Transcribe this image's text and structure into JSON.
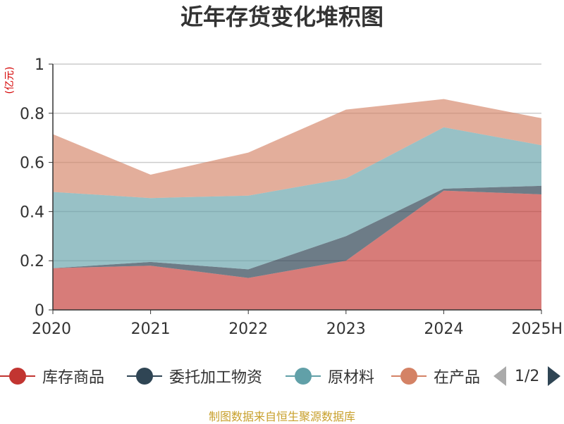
{
  "title": "近年存货变化堆积图",
  "source": "制图数据来自恒生聚源数据库",
  "legend_pager": "1/2",
  "chart_data": {
    "type": "area",
    "stacked": true,
    "title": "近年存货变化堆积图",
    "ylabel": "(亿元)",
    "categories": [
      "2020",
      "2021",
      "2022",
      "2023",
      "2024",
      "2025H"
    ],
    "ylim": [
      0,
      1
    ],
    "yticks": [
      "0",
      "0.2",
      "0.4",
      "0.6",
      "0.8",
      "1"
    ],
    "grid": true,
    "legend_position": "bottom",
    "series": [
      {
        "name": "库存商品",
        "color": "#c23531",
        "values": [
          0.17,
          0.18,
          0.13,
          0.2,
          0.485,
          0.47
        ]
      },
      {
        "name": "委托加工物资",
        "color": "#2f4554",
        "values": [
          0.0,
          0.015,
          0.035,
          0.1,
          0.008,
          0.035
        ]
      },
      {
        "name": "原材料",
        "color": "#61a0a8",
        "values": [
          0.31,
          0.26,
          0.3,
          0.235,
          0.25,
          0.165
        ]
      },
      {
        "name": "在产品",
        "color": "#d48265",
        "values": [
          0.235,
          0.095,
          0.175,
          0.28,
          0.115,
          0.11
        ]
      }
    ]
  }
}
